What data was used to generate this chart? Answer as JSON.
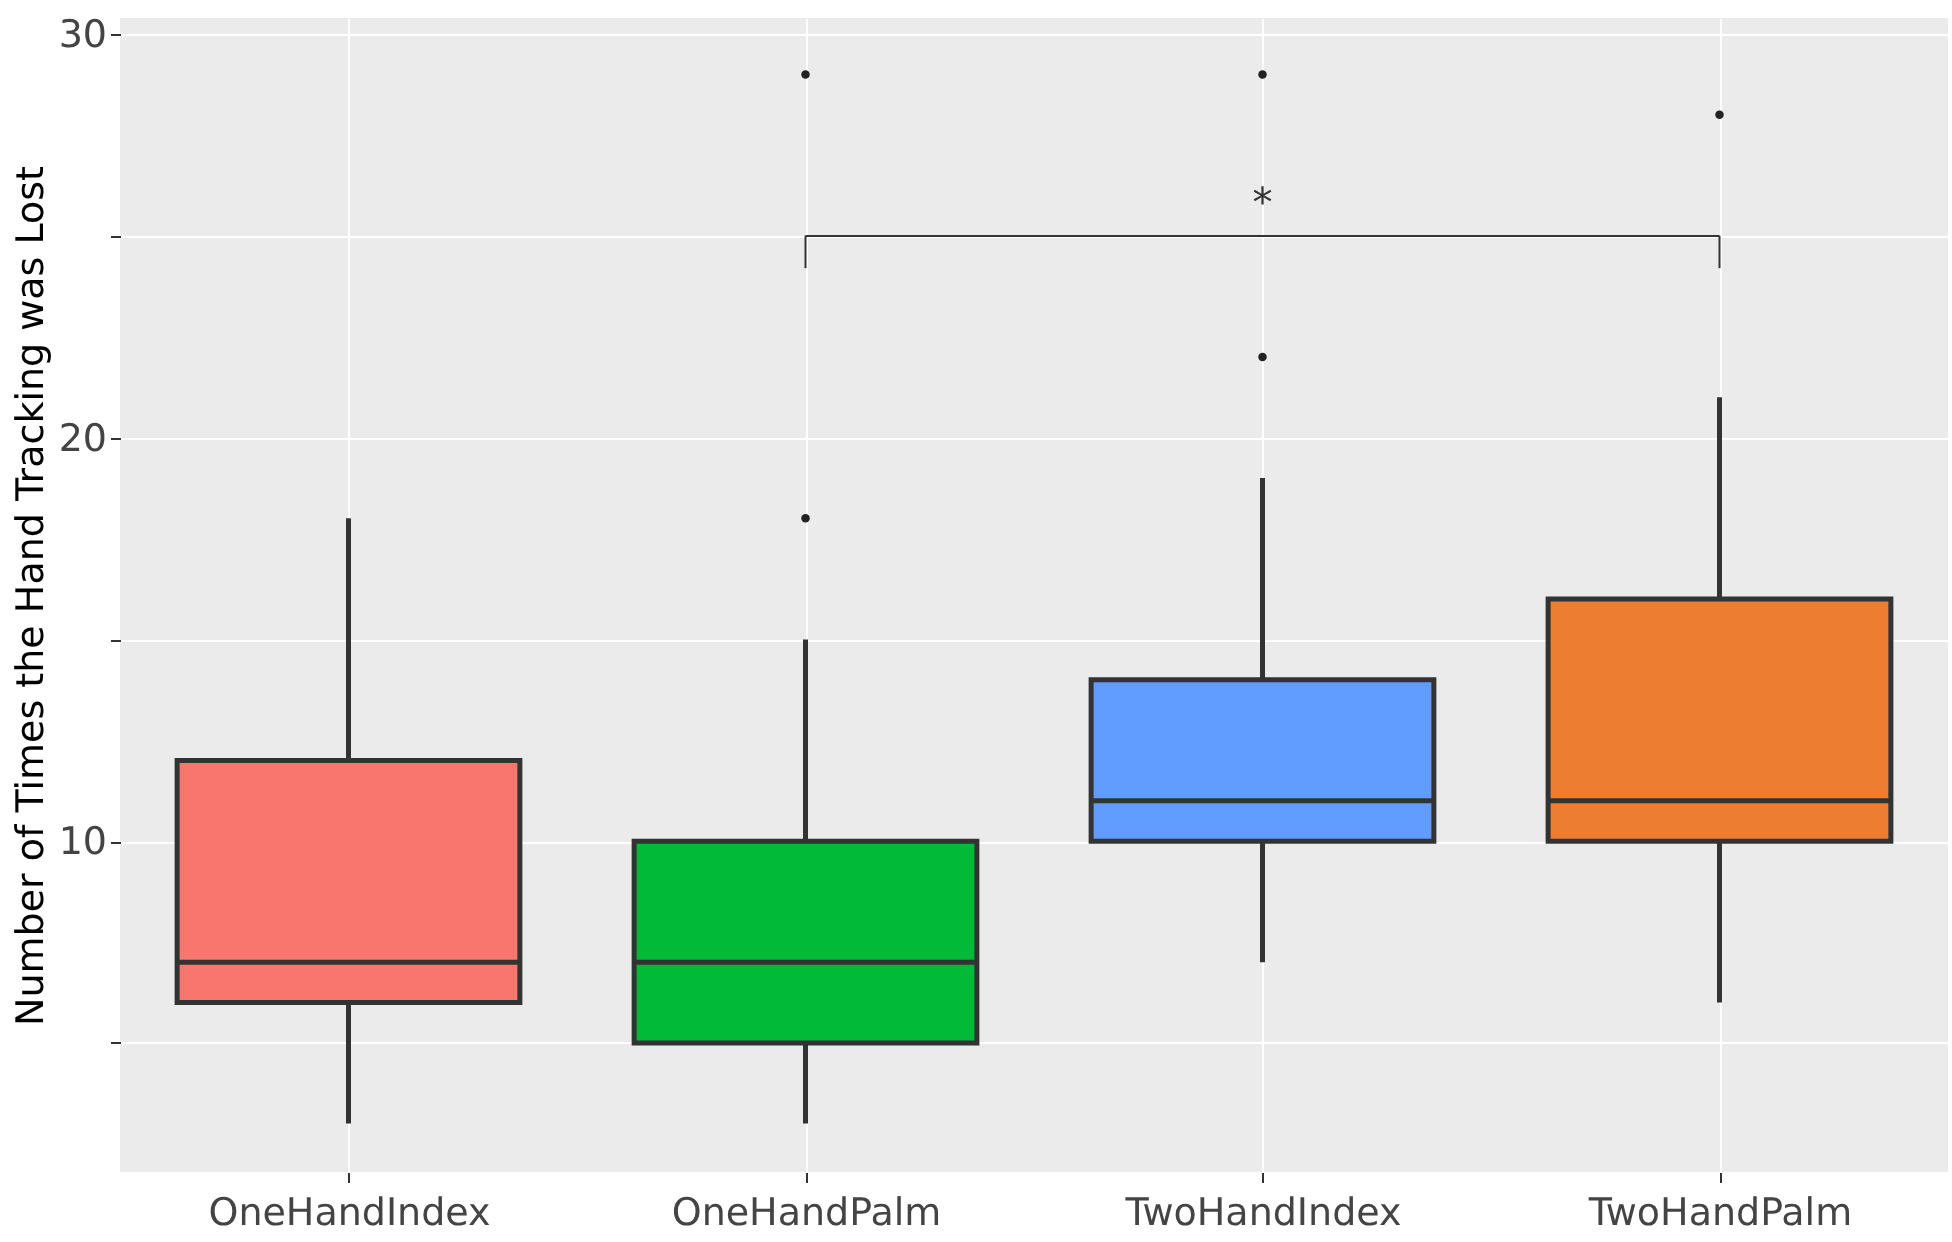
{
  "chart_data": {
    "type": "box",
    "ylabel": "Number of Times the Hand Tracking was Lost",
    "categories": [
      "OneHandIndex",
      "OneHandPalm",
      "TwoHandIndex",
      "TwoHandPalm"
    ],
    "colors": [
      "#f8766d",
      "#00ba38",
      "#619cff",
      "#ed7d31"
    ],
    "boxes": [
      {
        "low": 3,
        "q1": 6,
        "median": 7,
        "q3": 12,
        "high": 18
      },
      {
        "low": 3,
        "q1": 5,
        "median": 7,
        "q3": 10,
        "high": 15,
        "outliers": [
          18,
          29
        ]
      },
      {
        "low": 7,
        "q1": 10,
        "median": 11,
        "q3": 14,
        "high": 19,
        "outliers": [
          22,
          29
        ]
      },
      {
        "low": 6,
        "q1": 10,
        "median": 11,
        "q3": 16,
        "high": 21,
        "outliers": [
          28
        ]
      }
    ],
    "ylim": [
      1.8,
      30.4
    ],
    "yticks": [
      {
        "value": 5,
        "label": null
      },
      10,
      {
        "value": 15,
        "label": null
      },
      20,
      {
        "value": 25,
        "label": null
      },
      30
    ],
    "annotations": [
      "*"
    ],
    "grid": true,
    "legend": false
  }
}
